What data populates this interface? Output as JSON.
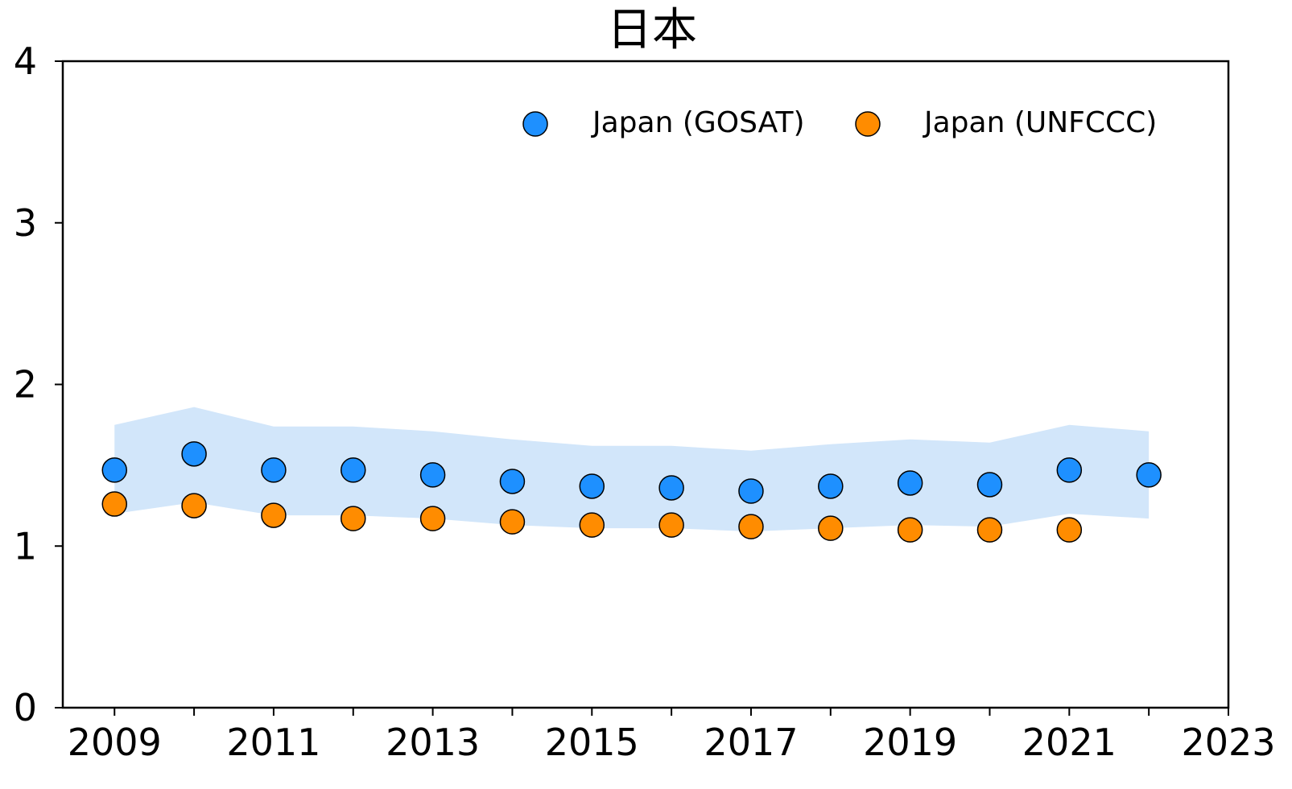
{
  "chart_data": {
    "type": "scatter",
    "title": "日本",
    "xlabel": "",
    "ylabel": "",
    "xlim": [
      2008.35,
      2023
    ],
    "ylim": [
      0,
      4
    ],
    "x_ticks": [
      2009,
      2010,
      2011,
      2012,
      2013,
      2014,
      2015,
      2016,
      2017,
      2018,
      2019,
      2020,
      2021,
      2022,
      2023
    ],
    "x_tick_labels": [
      "2009",
      "",
      "2011",
      "",
      "2013",
      "",
      "2015",
      "",
      "2017",
      "",
      "2019",
      "",
      "2021",
      "",
      "2023"
    ],
    "y_ticks": [
      0,
      1,
      2,
      3,
      4
    ],
    "y_tick_labels": [
      "0",
      "1",
      "2",
      "3",
      "4"
    ],
    "grid": false,
    "legend_position": "top-right",
    "series": [
      {
        "name": "Japan (GOSAT)",
        "color": "#1e90ff",
        "x": [
          2009,
          2010,
          2011,
          2012,
          2013,
          2014,
          2015,
          2016,
          2017,
          2018,
          2019,
          2020,
          2021,
          2022
        ],
        "values": [
          1.47,
          1.57,
          1.47,
          1.47,
          1.44,
          1.4,
          1.37,
          1.36,
          1.34,
          1.37,
          1.39,
          1.38,
          1.47,
          1.44
        ]
      },
      {
        "name": "Japan (UNFCCC)",
        "color": "#ff8c00",
        "x": [
          2009,
          2010,
          2011,
          2012,
          2013,
          2014,
          2015,
          2016,
          2017,
          2018,
          2019,
          2020,
          2021
        ],
        "values": [
          1.26,
          1.25,
          1.19,
          1.17,
          1.17,
          1.15,
          1.13,
          1.13,
          1.12,
          1.11,
          1.1,
          1.1,
          1.1
        ]
      }
    ],
    "band": {
      "color": "#d2e6fa",
      "x": [
        2009,
        2010,
        2011,
        2012,
        2013,
        2014,
        2015,
        2016,
        2017,
        2018,
        2019,
        2020,
        2021,
        2022
      ],
      "upper": [
        1.75,
        1.86,
        1.74,
        1.74,
        1.71,
        1.66,
        1.62,
        1.62,
        1.59,
        1.63,
        1.66,
        1.64,
        1.75,
        1.71
      ],
      "lower": [
        1.2,
        1.27,
        1.19,
        1.19,
        1.17,
        1.13,
        1.11,
        1.11,
        1.09,
        1.11,
        1.13,
        1.12,
        1.2,
        1.17
      ]
    }
  }
}
